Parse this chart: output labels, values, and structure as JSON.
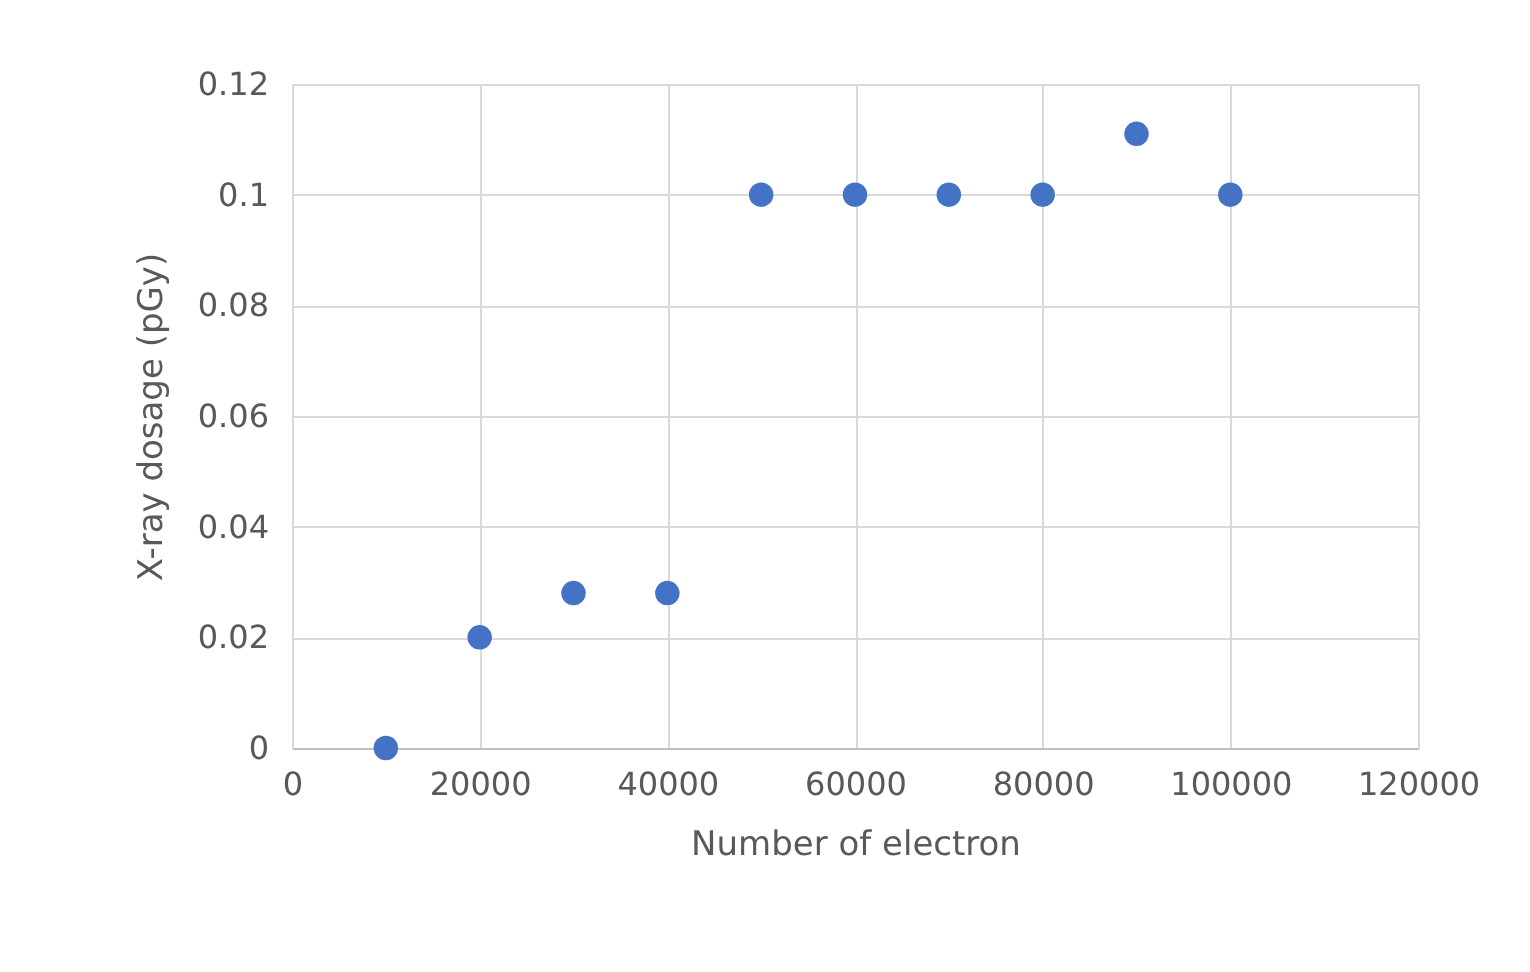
{
  "chart_data": {
    "type": "scatter",
    "xlabel": "Number of electron",
    "ylabel": "X-ray dosage (pGy)",
    "x": [
      10000,
      20000,
      30000,
      40000,
      50000,
      60000,
      70000,
      80000,
      90000,
      100000
    ],
    "series": [
      {
        "color": "#4472c4",
        "values": [
          0,
          0.02,
          0.028,
          0.028,
          0.1,
          0.1,
          0.1,
          0.1,
          0.111,
          0.1
        ]
      }
    ],
    "xlim": [
      0,
      120000
    ],
    "xticks": [
      0,
      20000,
      40000,
      60000,
      80000,
      100000,
      120000
    ],
    "ylim": [
      0,
      0.12
    ],
    "yticks": [
      0,
      0.02,
      0.04,
      0.06,
      0.08,
      0.1,
      0.12
    ],
    "grid": true,
    "marker": "circle"
  }
}
